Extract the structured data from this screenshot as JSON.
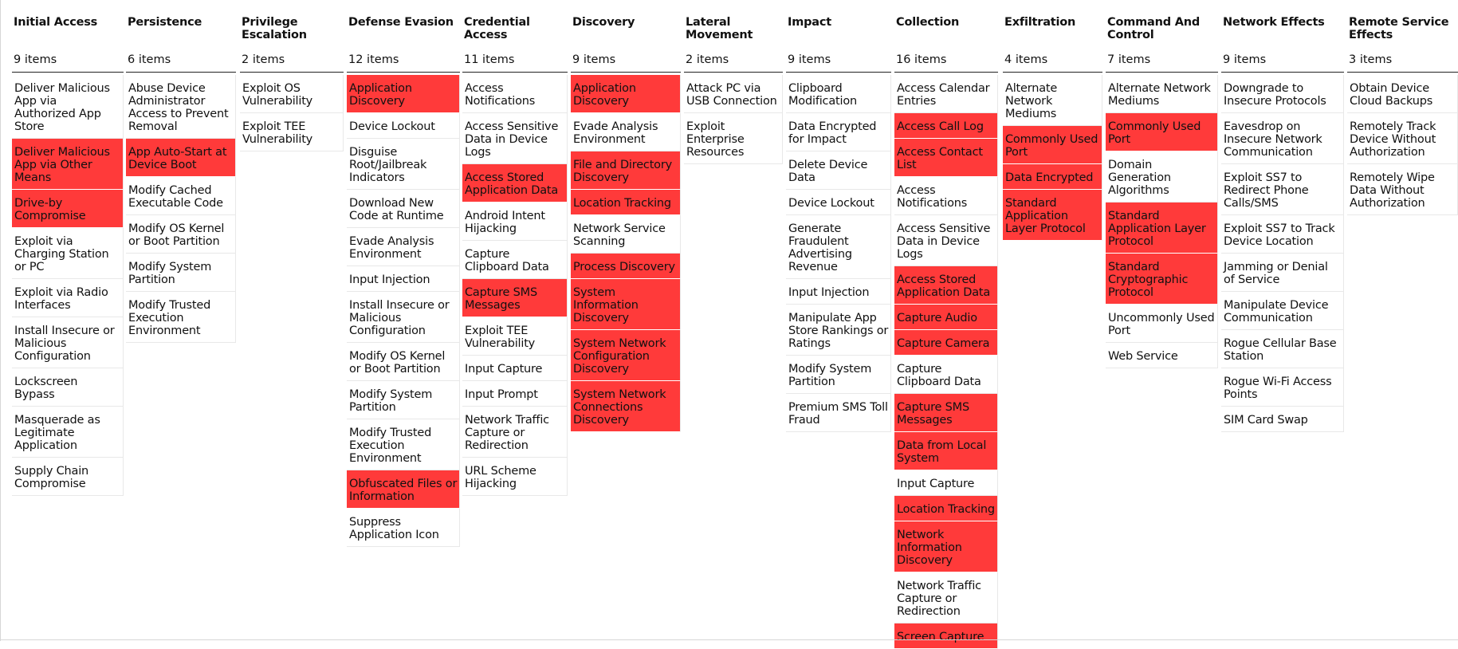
{
  "highlight_color": "#ff3a3a",
  "tactics": [
    {
      "name": "Initial Access",
      "count": "9 items",
      "techniques": [
        {
          "label": "Deliver Malicious App via Authorized App Store",
          "highlighted": false
        },
        {
          "label": "Deliver Malicious App via Other Means",
          "highlighted": true
        },
        {
          "label": "Drive-by Compromise",
          "highlighted": true
        },
        {
          "label": "Exploit via Charging Station or PC",
          "highlighted": false
        },
        {
          "label": "Exploit via Radio Interfaces",
          "highlighted": false
        },
        {
          "label": "Install Insecure or Malicious Configuration",
          "highlighted": false
        },
        {
          "label": "Lockscreen Bypass",
          "highlighted": false
        },
        {
          "label": "Masquerade as Legitimate Application",
          "highlighted": false
        },
        {
          "label": "Supply Chain Compromise",
          "highlighted": false
        }
      ]
    },
    {
      "name": "Persistence",
      "count": "6 items",
      "techniques": [
        {
          "label": "Abuse Device Administrator Access to Prevent Removal",
          "highlighted": false
        },
        {
          "label": "App Auto-Start at Device Boot",
          "highlighted": true
        },
        {
          "label": "Modify Cached Executable Code",
          "highlighted": false
        },
        {
          "label": "Modify OS Kernel or Boot Partition",
          "highlighted": false
        },
        {
          "label": "Modify System Partition",
          "highlighted": false
        },
        {
          "label": "Modify Trusted Execution Environment",
          "highlighted": false
        }
      ]
    },
    {
      "name": "Privilege Escalation",
      "count": "2 items",
      "techniques": [
        {
          "label": "Exploit OS Vulnerability",
          "highlighted": false
        },
        {
          "label": "Exploit TEE Vulnerability",
          "highlighted": false
        }
      ]
    },
    {
      "name": "Defense Evasion",
      "count": "12 items",
      "techniques": [
        {
          "label": "Application Discovery",
          "highlighted": true
        },
        {
          "label": "Device Lockout",
          "highlighted": false
        },
        {
          "label": "Disguise Root/Jailbreak Indicators",
          "highlighted": false
        },
        {
          "label": "Download New Code at Runtime",
          "highlighted": false
        },
        {
          "label": "Evade Analysis Environment",
          "highlighted": false
        },
        {
          "label": "Input Injection",
          "highlighted": false
        },
        {
          "label": "Install Insecure or Malicious Configuration",
          "highlighted": false
        },
        {
          "label": "Modify OS Kernel or Boot Partition",
          "highlighted": false
        },
        {
          "label": "Modify System Partition",
          "highlighted": false
        },
        {
          "label": "Modify Trusted Execution Environment",
          "highlighted": false
        },
        {
          "label": "Obfuscated Files or Information",
          "highlighted": true
        },
        {
          "label": "Suppress Application Icon",
          "highlighted": false
        }
      ]
    },
    {
      "name": "Credential Access",
      "count": "11 items",
      "techniques": [
        {
          "label": "Access Notifications",
          "highlighted": false
        },
        {
          "label": "Access Sensitive Data in Device Logs",
          "highlighted": false
        },
        {
          "label": "Access Stored Application Data",
          "highlighted": true
        },
        {
          "label": "Android Intent Hijacking",
          "highlighted": false
        },
        {
          "label": "Capture Clipboard Data",
          "highlighted": false
        },
        {
          "label": "Capture SMS Messages",
          "highlighted": true
        },
        {
          "label": "Exploit TEE Vulnerability",
          "highlighted": false
        },
        {
          "label": "Input Capture",
          "highlighted": false
        },
        {
          "label": "Input Prompt",
          "highlighted": false
        },
        {
          "label": "Network Traffic Capture or Redirection",
          "highlighted": false
        },
        {
          "label": "URL Scheme Hijacking",
          "highlighted": false
        }
      ]
    },
    {
      "name": "Discovery",
      "count": "9 items",
      "techniques": [
        {
          "label": "Application Discovery",
          "highlighted": true
        },
        {
          "label": "Evade Analysis Environment",
          "highlighted": false
        },
        {
          "label": "File and Directory Discovery",
          "highlighted": true
        },
        {
          "label": "Location Tracking",
          "highlighted": true
        },
        {
          "label": "Network Service Scanning",
          "highlighted": false
        },
        {
          "label": "Process Discovery",
          "highlighted": true
        },
        {
          "label": "System Information Discovery",
          "highlighted": true
        },
        {
          "label": "System Network Configuration Discovery",
          "highlighted": true
        },
        {
          "label": "System Network Connections Discovery",
          "highlighted": true
        }
      ]
    },
    {
      "name": "Lateral Movement",
      "count": "2 items",
      "techniques": [
        {
          "label": "Attack PC via USB Connection",
          "highlighted": false
        },
        {
          "label": "Exploit Enterprise Resources",
          "highlighted": false
        }
      ]
    },
    {
      "name": "Impact",
      "count": "9 items",
      "techniques": [
        {
          "label": "Clipboard Modification",
          "highlighted": false
        },
        {
          "label": "Data Encrypted for Impact",
          "highlighted": false
        },
        {
          "label": "Delete Device Data",
          "highlighted": false
        },
        {
          "label": "Device Lockout",
          "highlighted": false
        },
        {
          "label": "Generate Fraudulent Advertising Revenue",
          "highlighted": false
        },
        {
          "label": "Input Injection",
          "highlighted": false
        },
        {
          "label": "Manipulate App Store Rankings or Ratings",
          "highlighted": false
        },
        {
          "label": "Modify System Partition",
          "highlighted": false
        },
        {
          "label": "Premium SMS Toll Fraud",
          "highlighted": false
        }
      ]
    },
    {
      "name": "Collection",
      "count": "16 items",
      "techniques": [
        {
          "label": "Access Calendar Entries",
          "highlighted": false
        },
        {
          "label": "Access Call Log",
          "highlighted": true
        },
        {
          "label": "Access Contact List",
          "highlighted": true
        },
        {
          "label": "Access Notifications",
          "highlighted": false
        },
        {
          "label": "Access Sensitive Data in Device Logs",
          "highlighted": false
        },
        {
          "label": "Access Stored Application Data",
          "highlighted": true
        },
        {
          "label": "Capture Audio",
          "highlighted": true
        },
        {
          "label": "Capture Camera",
          "highlighted": true
        },
        {
          "label": "Capture Clipboard Data",
          "highlighted": false
        },
        {
          "label": "Capture SMS Messages",
          "highlighted": true
        },
        {
          "label": "Data from Local System",
          "highlighted": true
        },
        {
          "label": "Input Capture",
          "highlighted": false
        },
        {
          "label": "Location Tracking",
          "highlighted": true
        },
        {
          "label": "Network Information Discovery",
          "highlighted": true
        },
        {
          "label": "Network Traffic Capture or Redirection",
          "highlighted": false
        },
        {
          "label": "Screen Capture",
          "highlighted": true
        }
      ]
    },
    {
      "name": "Exfiltration",
      "count": "4 items",
      "techniques": [
        {
          "label": "Alternate Network Mediums",
          "highlighted": false
        },
        {
          "label": "Commonly Used Port",
          "highlighted": true
        },
        {
          "label": "Data Encrypted",
          "highlighted": true
        },
        {
          "label": "Standard Application Layer Protocol",
          "highlighted": true
        }
      ]
    },
    {
      "name": "Command And Control",
      "count": "7 items",
      "techniques": [
        {
          "label": "Alternate Network Mediums",
          "highlighted": false
        },
        {
          "label": "Commonly Used Port",
          "highlighted": true
        },
        {
          "label": "Domain Generation Algorithms",
          "highlighted": false
        },
        {
          "label": "Standard Application Layer Protocol",
          "highlighted": true
        },
        {
          "label": "Standard Cryptographic Protocol",
          "highlighted": true
        },
        {
          "label": "Uncommonly Used Port",
          "highlighted": false
        },
        {
          "label": "Web Service",
          "highlighted": false
        }
      ]
    },
    {
      "name": "Network Effects",
      "count": "9 items",
      "techniques": [
        {
          "label": "Downgrade to Insecure Protocols",
          "highlighted": false
        },
        {
          "label": "Eavesdrop on Insecure Network Communication",
          "highlighted": false
        },
        {
          "label": "Exploit SS7 to Redirect Phone Calls/SMS",
          "highlighted": false
        },
        {
          "label": "Exploit SS7 to Track Device Location",
          "highlighted": false
        },
        {
          "label": "Jamming or Denial of Service",
          "highlighted": false
        },
        {
          "label": "Manipulate Device Communication",
          "highlighted": false
        },
        {
          "label": "Rogue Cellular Base Station",
          "highlighted": false
        },
        {
          "label": "Rogue Wi-Fi Access Points",
          "highlighted": false
        },
        {
          "label": "SIM Card Swap",
          "highlighted": false
        }
      ]
    },
    {
      "name": "Remote Service Effects",
      "count": "3 items",
      "techniques": [
        {
          "label": "Obtain Device Cloud Backups",
          "highlighted": false
        },
        {
          "label": "Remotely Track Device Without Authorization",
          "highlighted": false
        },
        {
          "label": "Remotely Wipe Data Without Authorization",
          "highlighted": false
        }
      ]
    }
  ]
}
